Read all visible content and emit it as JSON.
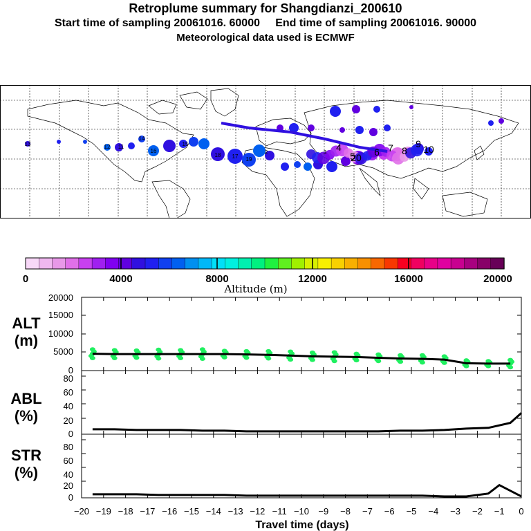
{
  "header": {
    "title": "Retroplume summary for Shangdianzi_200610",
    "subtitle": "Start time of sampling 20061016. 60000     End time of sampling 20061016. 90000",
    "met_line": "Meteorological data used is ECMWF"
  },
  "colorbar": {
    "label": "Altitude (m)",
    "ticks": [
      "0",
      "4000",
      "8000",
      "12000",
      "16000",
      "20000"
    ],
    "colors": [
      "#f8d8f8",
      "#f0b8f0",
      "#e898e8",
      "#e070e8",
      "#c840f0",
      "#a020f0",
      "#8000f0",
      "#6000e0",
      "#3010e0",
      "#2020f0",
      "#1040f0",
      "#0060f0",
      "#0090f0",
      "#00b8f8",
      "#00e0f8",
      "#00f0e0",
      "#00f0b0",
      "#00f080",
      "#20f040",
      "#60f020",
      "#a0f000",
      "#d8f000",
      "#f8f000",
      "#f8d000",
      "#f8b000",
      "#f89000",
      "#f86800",
      "#f83800",
      "#f80020",
      "#f00060",
      "#e80088",
      "#e000a0",
      "#c80090",
      "#a80080",
      "#880068",
      "#680058"
    ]
  },
  "panels": {
    "alt": {
      "label": "ALT",
      "unit": "(m)",
      "yticks": [
        "20000",
        "15000",
        "10000",
        "5000",
        "0"
      ]
    },
    "abl": {
      "label": "ABL",
      "unit": "(%)",
      "yticks": [
        "80",
        "60",
        "40",
        "20",
        "0"
      ]
    },
    "str": {
      "label": "STR",
      "unit": "(%)",
      "yticks": [
        "80",
        "60",
        "40",
        "20",
        "0"
      ]
    },
    "xticks": [
      "−20",
      "−19",
      "−18",
      "−17",
      "−16",
      "−15",
      "−14",
      "−13",
      "−12",
      "−11",
      "−10",
      "−9",
      "−8",
      "−7",
      "−6",
      "−5",
      "−4",
      "−3",
      "−2",
      "−1",
      "0"
    ],
    "xlabel": "Travel time (days)"
  },
  "chart_data": [
    {
      "type": "line",
      "name": "altitude",
      "x": [
        -19.5,
        -18.5,
        -17.5,
        -16.5,
        -15.5,
        -14.5,
        -13.5,
        -12.5,
        -11.5,
        -10.5,
        -9.5,
        -8.5,
        -7.5,
        -6.5,
        -5.5,
        -4.5,
        -3.5,
        -2.5,
        -1.5,
        -0.5
      ],
      "values": [
        4600,
        4500,
        4500,
        4500,
        4500,
        4500,
        4500,
        4400,
        4300,
        4100,
        3900,
        3800,
        3700,
        3500,
        3300,
        3200,
        3000,
        2000,
        1900,
        1900
      ],
      "ylim": [
        0,
        20000
      ],
      "xlim": [
        -20,
        0
      ],
      "ylabel": "ALT (m)",
      "scatter_spread": [
        1200,
        1100,
        1000,
        1200,
        1100,
        1300,
        900,
        900,
        1000,
        1100,
        1000,
        1200,
        900,
        900,
        900,
        1000,
        900,
        800,
        700,
        1000
      ]
    },
    {
      "type": "line",
      "name": "abl",
      "x": [
        -19.5,
        -18.5,
        -17.5,
        -16.5,
        -15.5,
        -14.5,
        -13.5,
        -12.5,
        -11.5,
        -10.5,
        -9.5,
        -8.5,
        -7.5,
        -6.5,
        -5.5,
        -4.5,
        -3.5,
        -2.5,
        -1.5,
        -0.5,
        0
      ],
      "values": [
        7,
        7,
        6,
        6,
        6,
        5,
        5,
        4,
        4,
        4,
        4,
        4,
        4,
        4,
        5,
        5,
        6,
        8,
        9,
        16,
        30
      ],
      "ylim": [
        0,
        90
      ],
      "xlim": [
        -20,
        0
      ],
      "ylabel": "ABL (%)"
    },
    {
      "type": "line",
      "name": "str",
      "x": [
        -19.5,
        -18.5,
        -17.5,
        -16.5,
        -15.5,
        -14.5,
        -13.5,
        -12.5,
        -11.5,
        -10.5,
        -9.5,
        -8.5,
        -7.5,
        -6.5,
        -5.5,
        -4.5,
        -3.5,
        -2.5,
        -1.5,
        -1.0,
        0
      ],
      "values": [
        5,
        5,
        5,
        4,
        4,
        4,
        4,
        3,
        3,
        3,
        3,
        3,
        3,
        3,
        3,
        3,
        2,
        2,
        6,
        18,
        2
      ],
      "ylim": [
        0,
        90
      ],
      "xlim": [
        -20,
        0
      ],
      "ylabel": "STR (%)"
    }
  ],
  "map": {
    "labels": [
      "13",
      "12",
      "11",
      "14",
      "16",
      "15",
      "18",
      "17",
      "19",
      "2",
      "3",
      "4",
      "5",
      "6",
      "7",
      "8",
      "9",
      "10",
      "20"
    ],
    "plume_colors": [
      "#3010e0",
      "#2020f0",
      "#6000e0",
      "#8000f0",
      "#a020f0",
      "#c840f0",
      "#e070e8",
      "#e898e8"
    ]
  }
}
